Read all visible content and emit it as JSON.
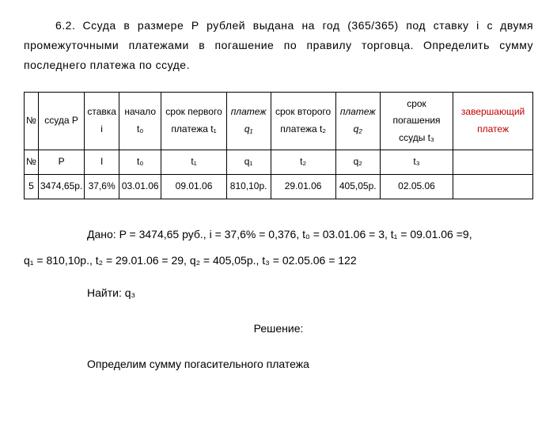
{
  "problem": {
    "number": "6.2.",
    "text_line1": "Ссуда в размере P рублей  выдана на год (365/365) под ставку i с",
    "text_line2": "двумя промежуточными платежами в погашение по правилу торговца.",
    "text_line3": "Определить сумму последнего платежа по ссуде."
  },
  "table": {
    "headers_row1": {
      "col1": "№",
      "col2": "ссуда P",
      "col3": "ставка i",
      "col4": "начало t₀",
      "col5": "срок первого платежа t₁",
      "col6": "платеж q₁",
      "col7": "срок второго платежа t₂",
      "col8": "платеж q₂",
      "col9": "срок погашения ссуды t₃",
      "col10": "завершающий платеж"
    },
    "headers_row2": {
      "col1": "№",
      "col2": "P",
      "col3": "I",
      "col4": "t₀",
      "col5": "t₁",
      "col6": "q₁",
      "col7": "t₂",
      "col8": "q₂",
      "col9": "t₃",
      "col10": ""
    },
    "data_row": {
      "col1": "5",
      "col2": "3474,65р.",
      "col3": "37,6%",
      "col4": "03.01.06",
      "col5": "09.01.06",
      "col6": "810,10р.",
      "col7": "29.01.06",
      "col8": "405,05р.",
      "col9": "02.05.06",
      "col10": ""
    },
    "styling": {
      "border_color": "#000000",
      "font_size": 12,
      "red_color": "#c00000"
    }
  },
  "given": {
    "line1": "Дано: P = 3474,65 руб., i = 37,6% = 0,376, t₀ = 03.01.06 = 3, t₁ = 09.01.06 =9,",
    "line2": "q₁ = 810,10р., t₂ = 29.01.06 = 29, q₂ = 405,05р.,  t₃ = 02.05.06 = 122"
  },
  "find": {
    "text": "Найти: q₃"
  },
  "solution": {
    "title": "Решение:",
    "text": "Определим сумму погасительного платежа"
  },
  "styling": {
    "background_color": "#ffffff",
    "text_color": "#000000",
    "font_family": "Arial, sans-serif",
    "base_font_size": 14
  }
}
